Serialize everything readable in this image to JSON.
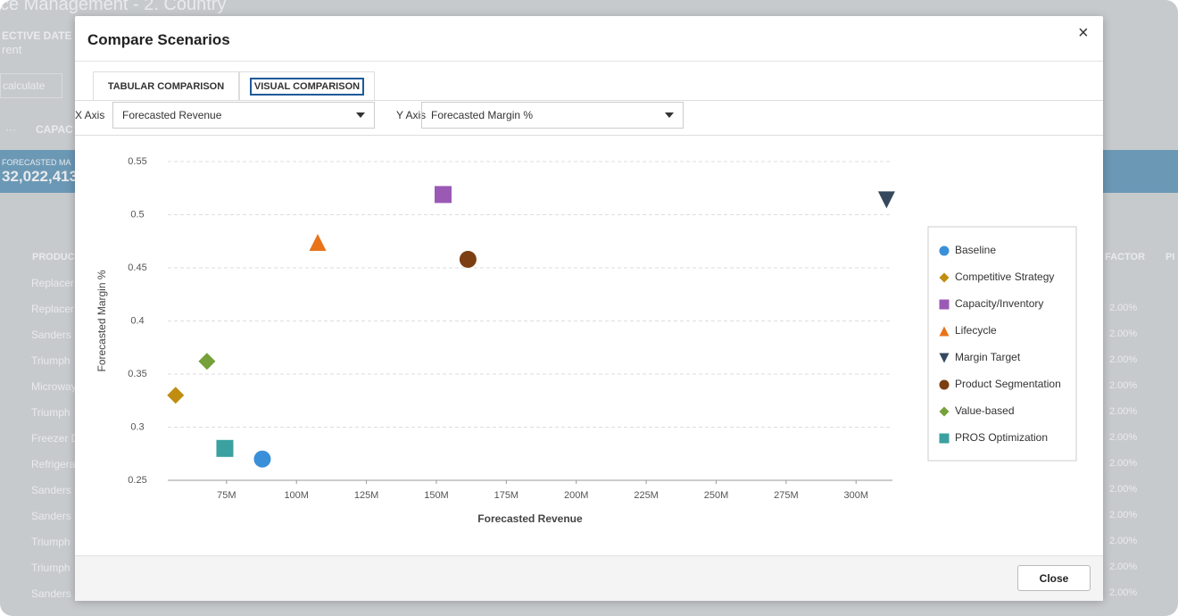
{
  "background": {
    "title": "ce Management - 2. Country",
    "effective_date_label": "ECTIVE DATE",
    "effective_date_value": "rent",
    "recalculate": "calculate",
    "more": "···",
    "capacity_col": "CAPAC",
    "kpi_label": "FORECASTED MA",
    "kpi_value": "32,022,413",
    "product_col": "PRODUCT",
    "factor_col": "FACTOR",
    "pi_col": "PI",
    "rows": [
      "Replacer",
      "Replacer",
      "Sanders",
      "Triumph",
      "Microway",
      "Triumph",
      "Freezer D",
      "Refrigera",
      "Sanders",
      "Sanders",
      "Triumph",
      "Triumph",
      "Sanders"
    ],
    "factor_values": [
      "2.00%",
      "2.00%",
      "2.00%",
      "2.00%",
      "2.00%",
      "2.00%",
      "2.00%",
      "2.00%",
      "2.00%",
      "2.00%",
      "2.00%",
      "2.00%"
    ]
  },
  "modal": {
    "title": "Compare Scenarios",
    "close_icon": "×",
    "tabs": [
      "TABULAR COMPARISON",
      "VISUAL COMPARISON"
    ],
    "active_tab": 1,
    "x_axis_label": "X Axis",
    "x_axis_value": "Forecasted Revenue",
    "y_axis_label": "Y Axis",
    "y_axis_value": "Forecasted Margin %",
    "close_button": "Close"
  },
  "chart_data": {
    "type": "scatter",
    "x_label": "Forecasted Revenue",
    "y_label": "Forecasted Margin %",
    "xlim": [
      54000000,
      313000000
    ],
    "xticks": [
      {
        "value": 75000000,
        "label": "75M"
      },
      {
        "value": 100000000,
        "label": "100M"
      },
      {
        "value": 125000000,
        "label": "125M"
      },
      {
        "value": 150000000,
        "label": "150M"
      },
      {
        "value": 175000000,
        "label": "175M"
      },
      {
        "value": 200000000,
        "label": "200M"
      },
      {
        "value": 225000000,
        "label": "225M"
      },
      {
        "value": 250000000,
        "label": "250M"
      },
      {
        "value": 275000000,
        "label": "275M"
      },
      {
        "value": 300000000,
        "label": "300M"
      }
    ],
    "ylim": [
      0.25,
      0.55
    ],
    "yticks": [
      0.25,
      0.3,
      0.35,
      0.4,
      0.45,
      0.5,
      0.55
    ],
    "grid": true,
    "legend": "right",
    "series": [
      {
        "name": "Baseline",
        "color": "#3a8fd9",
        "marker": "circle",
        "x": [
          87800000
        ],
        "values": [
          0.27
        ]
      },
      {
        "name": "Competitive Strategy",
        "color": "#c08d10",
        "marker": "diamond",
        "x": [
          56800000
        ],
        "values": [
          0.33
        ]
      },
      {
        "name": "Capacity/Inventory",
        "color": "#9b59b6",
        "marker": "square",
        "x": [
          152400000
        ],
        "values": [
          0.519
        ]
      },
      {
        "name": "Lifecycle",
        "color": "#e8731a",
        "marker": "triangle-up",
        "x": [
          107600000
        ],
        "values": [
          0.474
        ]
      },
      {
        "name": "Margin Target",
        "color": "#34495e",
        "marker": "triangle-down",
        "x": [
          310900000
        ],
        "values": [
          0.514
        ]
      },
      {
        "name": "Product Segmentation",
        "color": "#7b3f12",
        "marker": "circle",
        "x": [
          161300000
        ],
        "values": [
          0.458
        ]
      },
      {
        "name": "Value-based",
        "color": "#76a03a",
        "marker": "diamond",
        "x": [
          68000000
        ],
        "values": [
          0.362
        ]
      },
      {
        "name": "PROS Optimization",
        "color": "#3aa0a0",
        "marker": "square",
        "x": [
          74400000
        ],
        "values": [
          0.28
        ]
      }
    ]
  }
}
